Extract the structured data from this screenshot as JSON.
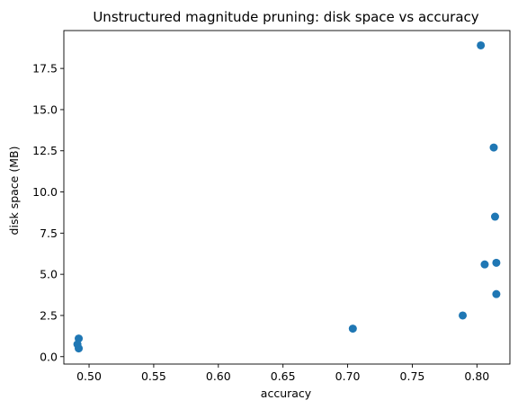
{
  "chart_data": {
    "type": "scatter",
    "title": "Unstructured magnitude pruning: disk space vs accuracy",
    "xlabel": "accuracy",
    "ylabel": "disk space (MB)",
    "xlim": [
      0.4805,
      0.8255
    ],
    "ylim": [
      -0.45,
      19.8
    ],
    "x_ticks": [
      0.5,
      0.55,
      0.6,
      0.65,
      0.7,
      0.75,
      0.8
    ],
    "x_tick_labels": [
      "0.50",
      "0.55",
      "0.60",
      "0.65",
      "0.70",
      "0.75",
      "0.80"
    ],
    "y_ticks": [
      0.0,
      2.5,
      5.0,
      7.5,
      10.0,
      12.5,
      15.0,
      17.5
    ],
    "y_tick_labels": [
      "0.0",
      "2.5",
      "5.0",
      "7.5",
      "10.0",
      "12.5",
      "15.0",
      "17.5"
    ],
    "marker_color": "#1f77b4",
    "grid": false,
    "series": [
      {
        "x": [
          0.492,
          0.491,
          0.492,
          0.704,
          0.789,
          0.806,
          0.815,
          0.815,
          0.814,
          0.813,
          0.803
        ],
        "y": [
          1.1,
          0.75,
          0.5,
          1.7,
          2.5,
          5.6,
          5.7,
          3.8,
          8.5,
          12.7,
          18.9
        ]
      }
    ]
  }
}
